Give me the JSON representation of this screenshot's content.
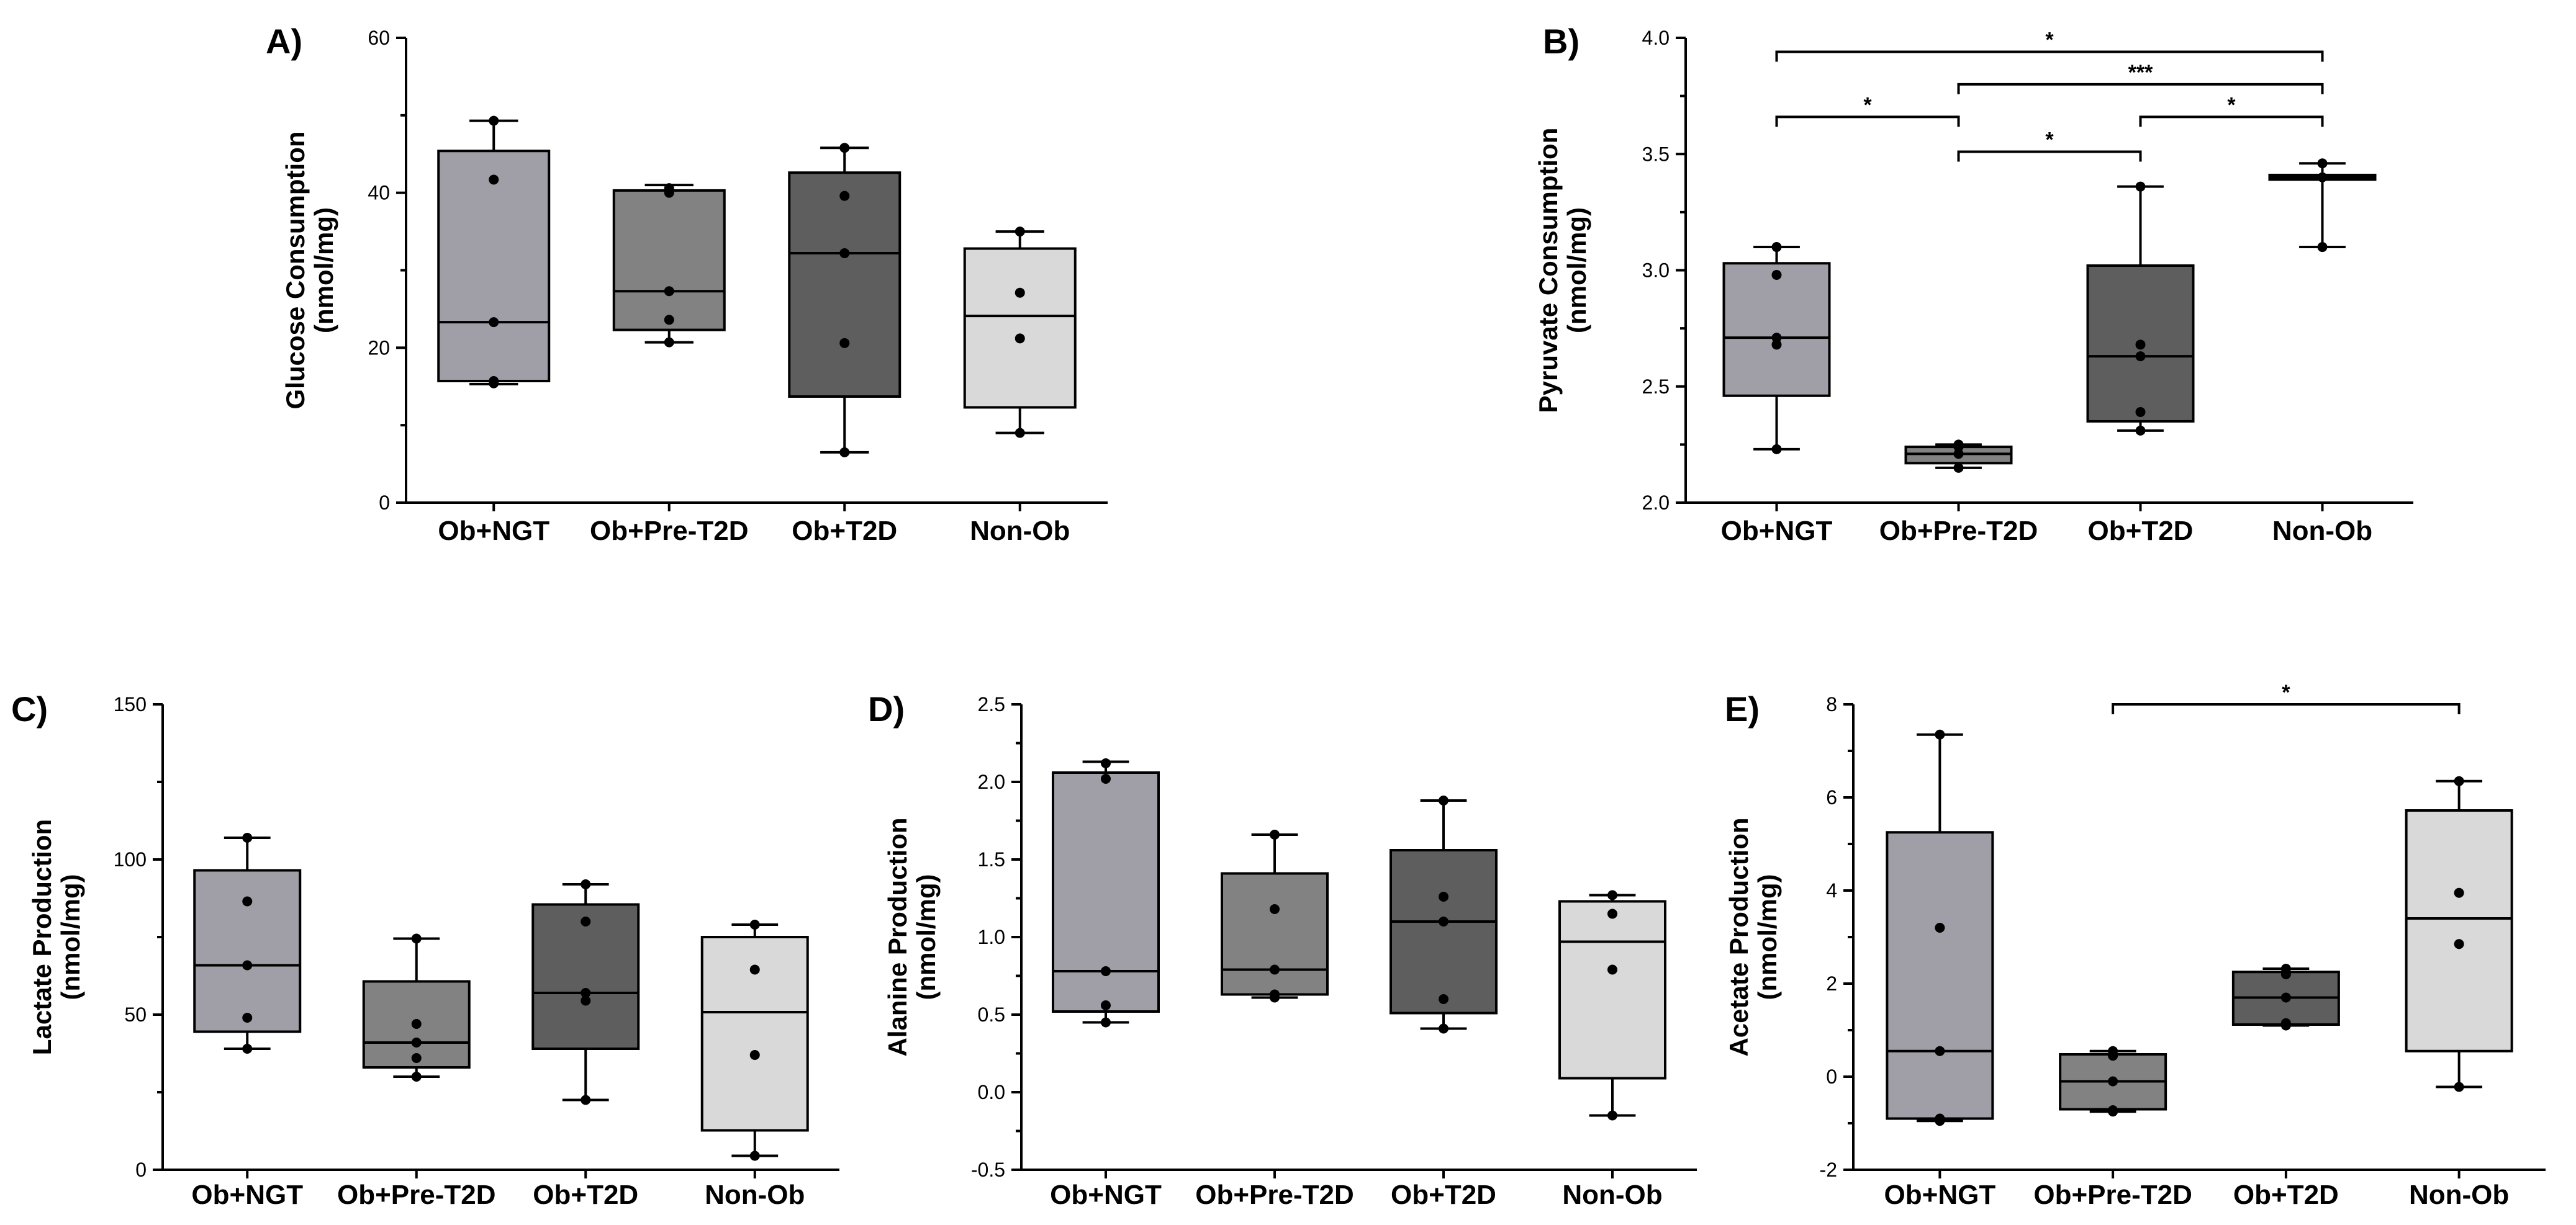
{
  "chart_data": [
    {
      "id": "A",
      "type": "box",
      "panel_label": "A)",
      "ylabel_lines": [
        "Glucose Consumption",
        "(nmol/mg)"
      ],
      "ylim": [
        0,
        60
      ],
      "yticks": [
        0,
        20,
        40,
        60
      ],
      "categories": [
        "Ob+NGT",
        "Ob+Pre-T2D",
        "Ob+T2D",
        "Non-Ob"
      ],
      "colors": [
        "#a09fa7",
        "#828282",
        "#5e5e5e",
        "#d9d9d9"
      ],
      "boxes": [
        {
          "whisker_low": 15.3,
          "q1": 15.7,
          "median": 23.3,
          "q3": 45.4,
          "whisker_high": 49.3
        },
        {
          "whisker_low": 20.7,
          "q1": 22.3,
          "median": 27.3,
          "q3": 40.3,
          "whisker_high": 41.0
        },
        {
          "whisker_low": 6.5,
          "q1": 13.7,
          "median": 32.2,
          "q3": 42.6,
          "whisker_high": 45.8
        },
        {
          "whisker_low": 9.0,
          "q1": 12.3,
          "median": 24.1,
          "q3": 32.8,
          "whisker_high": 35.0
        }
      ],
      "points": [
        [
          49.3,
          41.7,
          23.3,
          15.7,
          15.4
        ],
        [
          40.6,
          40.0,
          27.3,
          23.6,
          20.7
        ],
        [
          45.8,
          39.6,
          32.2,
          20.6,
          6.5
        ],
        [
          35.0,
          27.1,
          21.2,
          9.0
        ]
      ],
      "significance": []
    },
    {
      "id": "B",
      "type": "box",
      "panel_label": "B)",
      "ylabel_lines": [
        "Pyruvate Consumption",
        "(nmol/mg)"
      ],
      "ylim": [
        2.0,
        4.0
      ],
      "yticks": [
        2.0,
        2.5,
        3.0,
        3.5,
        4.0
      ],
      "tick_decimals": 1,
      "categories": [
        "Ob+NGT",
        "Ob+Pre-T2D",
        "Ob+T2D",
        "Non-Ob"
      ],
      "colors": [
        "#a09fa7",
        "#828282",
        "#5e5e5e",
        "#d9d9d9"
      ],
      "boxes": [
        {
          "whisker_low": 2.23,
          "q1": 2.46,
          "median": 2.71,
          "q3": 3.03,
          "whisker_high": 3.1
        },
        {
          "whisker_low": 2.15,
          "q1": 2.17,
          "median": 2.21,
          "q3": 2.24,
          "whisker_high": 2.25
        },
        {
          "whisker_low": 2.31,
          "q1": 2.35,
          "median": 2.63,
          "q3": 3.02,
          "whisker_high": 3.36
        },
        {
          "whisker_low": 3.1,
          "q1": 3.39,
          "median": 3.4,
          "q3": 3.41,
          "whisker_high": 3.46
        }
      ],
      "points": [
        [
          3.1,
          2.98,
          2.71,
          2.68,
          2.23
        ],
        [
          2.25,
          2.24,
          2.21,
          2.15
        ],
        [
          3.36,
          2.68,
          2.63,
          2.39,
          2.31
        ],
        [
          3.46,
          3.4,
          3.1
        ]
      ],
      "significance": [
        {
          "from": 0,
          "to": 3,
          "y": 3.94,
          "label": "*"
        },
        {
          "from": 1,
          "to": 3,
          "y": 3.8,
          "label": "***"
        },
        {
          "from": 0,
          "to": 1,
          "y": 3.66,
          "label": "*"
        },
        {
          "from": 2,
          "to": 3,
          "y": 3.66,
          "label": "*"
        },
        {
          "from": 1,
          "to": 2,
          "y": 3.51,
          "label": "*"
        }
      ]
    },
    {
      "id": "C",
      "type": "box",
      "panel_label": "C)",
      "ylabel_lines": [
        "Lactate Production",
        "(nmol/mg)"
      ],
      "ylim": [
        0,
        150
      ],
      "yticks": [
        0,
        50,
        100,
        150
      ],
      "categories": [
        "Ob+NGT",
        "Ob+Pre-T2D",
        "Ob+T2D",
        "Non-Ob"
      ],
      "colors": [
        "#a09fa7",
        "#828282",
        "#5e5e5e",
        "#d9d9d9"
      ],
      "boxes": [
        {
          "whisker_low": 39.0,
          "q1": 44.5,
          "median": 65.9,
          "q3": 96.5,
          "whisker_high": 107.0
        },
        {
          "whisker_low": 30.0,
          "q1": 33.0,
          "median": 41.0,
          "q3": 60.7,
          "whisker_high": 74.5
        },
        {
          "whisker_low": 22.5,
          "q1": 39.0,
          "median": 57.0,
          "q3": 85.5,
          "whisker_high": 92.0
        },
        {
          "whisker_low": 4.5,
          "q1": 12.7,
          "median": 50.8,
          "q3": 75.0,
          "whisker_high": 79.0
        }
      ],
      "points": [
        [
          107.0,
          86.5,
          65.9,
          49.0,
          39.0
        ],
        [
          74.5,
          47.0,
          41.0,
          36.0,
          30.0
        ],
        [
          92.0,
          80.0,
          57.0,
          54.5,
          22.5
        ],
        [
          79.0,
          64.5,
          37.0,
          4.5
        ]
      ],
      "significance": []
    },
    {
      "id": "D",
      "type": "box",
      "panel_label": "D)",
      "ylabel_lines": [
        "Alanine Production",
        "(nmol/mg)"
      ],
      "ylim": [
        -0.5,
        2.5
      ],
      "yticks": [
        -0.5,
        0.0,
        0.5,
        1.0,
        1.5,
        2.0,
        2.5
      ],
      "tick_decimals": 1,
      "categories": [
        "Ob+NGT",
        "Ob+Pre-T2D",
        "Ob+T2D",
        "Non-Ob"
      ],
      "colors": [
        "#a09fa7",
        "#828282",
        "#5e5e5e",
        "#d9d9d9"
      ],
      "boxes": [
        {
          "whisker_low": 0.45,
          "q1": 0.52,
          "median": 0.78,
          "q3": 2.06,
          "whisker_high": 2.13
        },
        {
          "whisker_low": 0.61,
          "q1": 0.63,
          "median": 0.79,
          "q3": 1.41,
          "whisker_high": 1.66
        },
        {
          "whisker_low": 0.41,
          "q1": 0.51,
          "median": 1.1,
          "q3": 1.56,
          "whisker_high": 1.88
        },
        {
          "whisker_low": -0.15,
          "q1": 0.09,
          "median": 0.97,
          "q3": 1.23,
          "whisker_high": 1.27
        }
      ],
      "points": [
        [
          2.12,
          2.02,
          0.78,
          0.56,
          0.45
        ],
        [
          1.66,
          1.18,
          0.79,
          0.63,
          0.61
        ],
        [
          1.88,
          1.26,
          1.1,
          0.6,
          0.41
        ],
        [
          1.27,
          1.15,
          0.79,
          -0.15
        ]
      ],
      "significance": []
    },
    {
      "id": "E",
      "type": "box",
      "panel_label": "E)",
      "ylabel_lines": [
        "Acetate Production",
        "(nmol/mg)"
      ],
      "ylim": [
        -2,
        8
      ],
      "yticks": [
        -2,
        0,
        2,
        4,
        6,
        8
      ],
      "categories": [
        "Ob+NGT",
        "Ob+Pre-T2D",
        "Ob+T2D",
        "Non-Ob"
      ],
      "colors": [
        "#a09fa7",
        "#828282",
        "#5e5e5e",
        "#d9d9d9"
      ],
      "boxes": [
        {
          "whisker_low": -0.95,
          "q1": -0.9,
          "median": 0.55,
          "q3": 5.25,
          "whisker_high": 7.35
        },
        {
          "whisker_low": -0.75,
          "q1": -0.7,
          "median": -0.1,
          "q3": 0.48,
          "whisker_high": 0.55
        },
        {
          "whisker_low": 1.1,
          "q1": 1.12,
          "median": 1.7,
          "q3": 2.25,
          "whisker_high": 2.32
        },
        {
          "whisker_low": -0.22,
          "q1": 0.55,
          "median": 3.4,
          "q3": 5.72,
          "whisker_high": 6.35
        }
      ],
      "points": [
        [
          7.35,
          3.2,
          0.55,
          -0.9,
          -0.95
        ],
        [
          0.55,
          0.45,
          -0.1,
          -0.72,
          -0.75
        ],
        [
          2.32,
          2.2,
          1.7,
          1.15,
          1.1
        ],
        [
          6.35,
          3.95,
          2.85,
          -0.22
        ]
      ],
      "significance": [
        {
          "from": 1,
          "to": 3,
          "y": 8.0,
          "label": "*"
        }
      ]
    }
  ]
}
